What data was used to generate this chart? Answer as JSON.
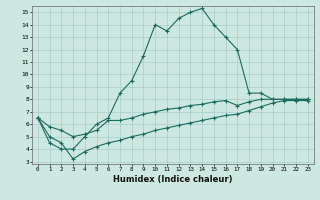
{
  "xlabel": "Humidex (Indice chaleur)",
  "xlim": [
    -0.5,
    23.5
  ],
  "ylim": [
    2.8,
    15.5
  ],
  "xticks": [
    0,
    1,
    2,
    3,
    4,
    5,
    6,
    7,
    8,
    9,
    10,
    11,
    12,
    13,
    14,
    15,
    16,
    17,
    18,
    19,
    20,
    21,
    22,
    23
  ],
  "yticks": [
    3,
    4,
    5,
    6,
    7,
    8,
    9,
    10,
    11,
    12,
    13,
    14,
    15
  ],
  "bg_color": "#cce8e0",
  "grid_color": "#aacccc",
  "line_color": "#1a6b60",
  "line1_x": [
    0,
    1,
    2,
    3,
    4,
    5,
    6,
    7,
    8,
    9,
    10,
    11,
    12,
    13,
    14,
    15,
    16,
    17,
    18,
    19,
    20,
    21,
    22,
    23
  ],
  "line1_y": [
    6.5,
    4.5,
    4.0,
    4.0,
    5.0,
    6.0,
    6.5,
    8.5,
    9.5,
    11.5,
    14.0,
    13.5,
    14.5,
    15.0,
    15.3,
    14.0,
    13.0,
    12.0,
    8.5,
    8.5,
    8.0,
    8.0,
    8.0,
    8.0
  ],
  "line2_x": [
    0,
    1,
    2,
    3,
    4,
    5,
    6,
    7,
    8,
    9,
    10,
    11,
    12,
    13,
    14,
    15,
    16,
    17,
    18,
    19,
    20,
    21,
    22,
    23
  ],
  "line2_y": [
    6.5,
    5.8,
    5.5,
    5.0,
    5.2,
    5.5,
    6.3,
    6.3,
    6.5,
    6.8,
    7.0,
    7.2,
    7.3,
    7.5,
    7.6,
    7.8,
    7.9,
    7.5,
    7.8,
    8.0,
    8.0,
    8.0,
    8.0,
    8.0
  ],
  "line3_x": [
    0,
    1,
    2,
    3,
    4,
    5,
    6,
    7,
    8,
    9,
    10,
    11,
    12,
    13,
    14,
    15,
    16,
    17,
    18,
    19,
    20,
    21,
    22,
    23
  ],
  "line3_y": [
    6.5,
    5.0,
    4.5,
    3.2,
    3.8,
    4.2,
    4.5,
    4.7,
    5.0,
    5.2,
    5.5,
    5.7,
    5.9,
    6.1,
    6.3,
    6.5,
    6.7,
    6.8,
    7.1,
    7.4,
    7.7,
    7.9,
    7.9,
    7.9
  ]
}
